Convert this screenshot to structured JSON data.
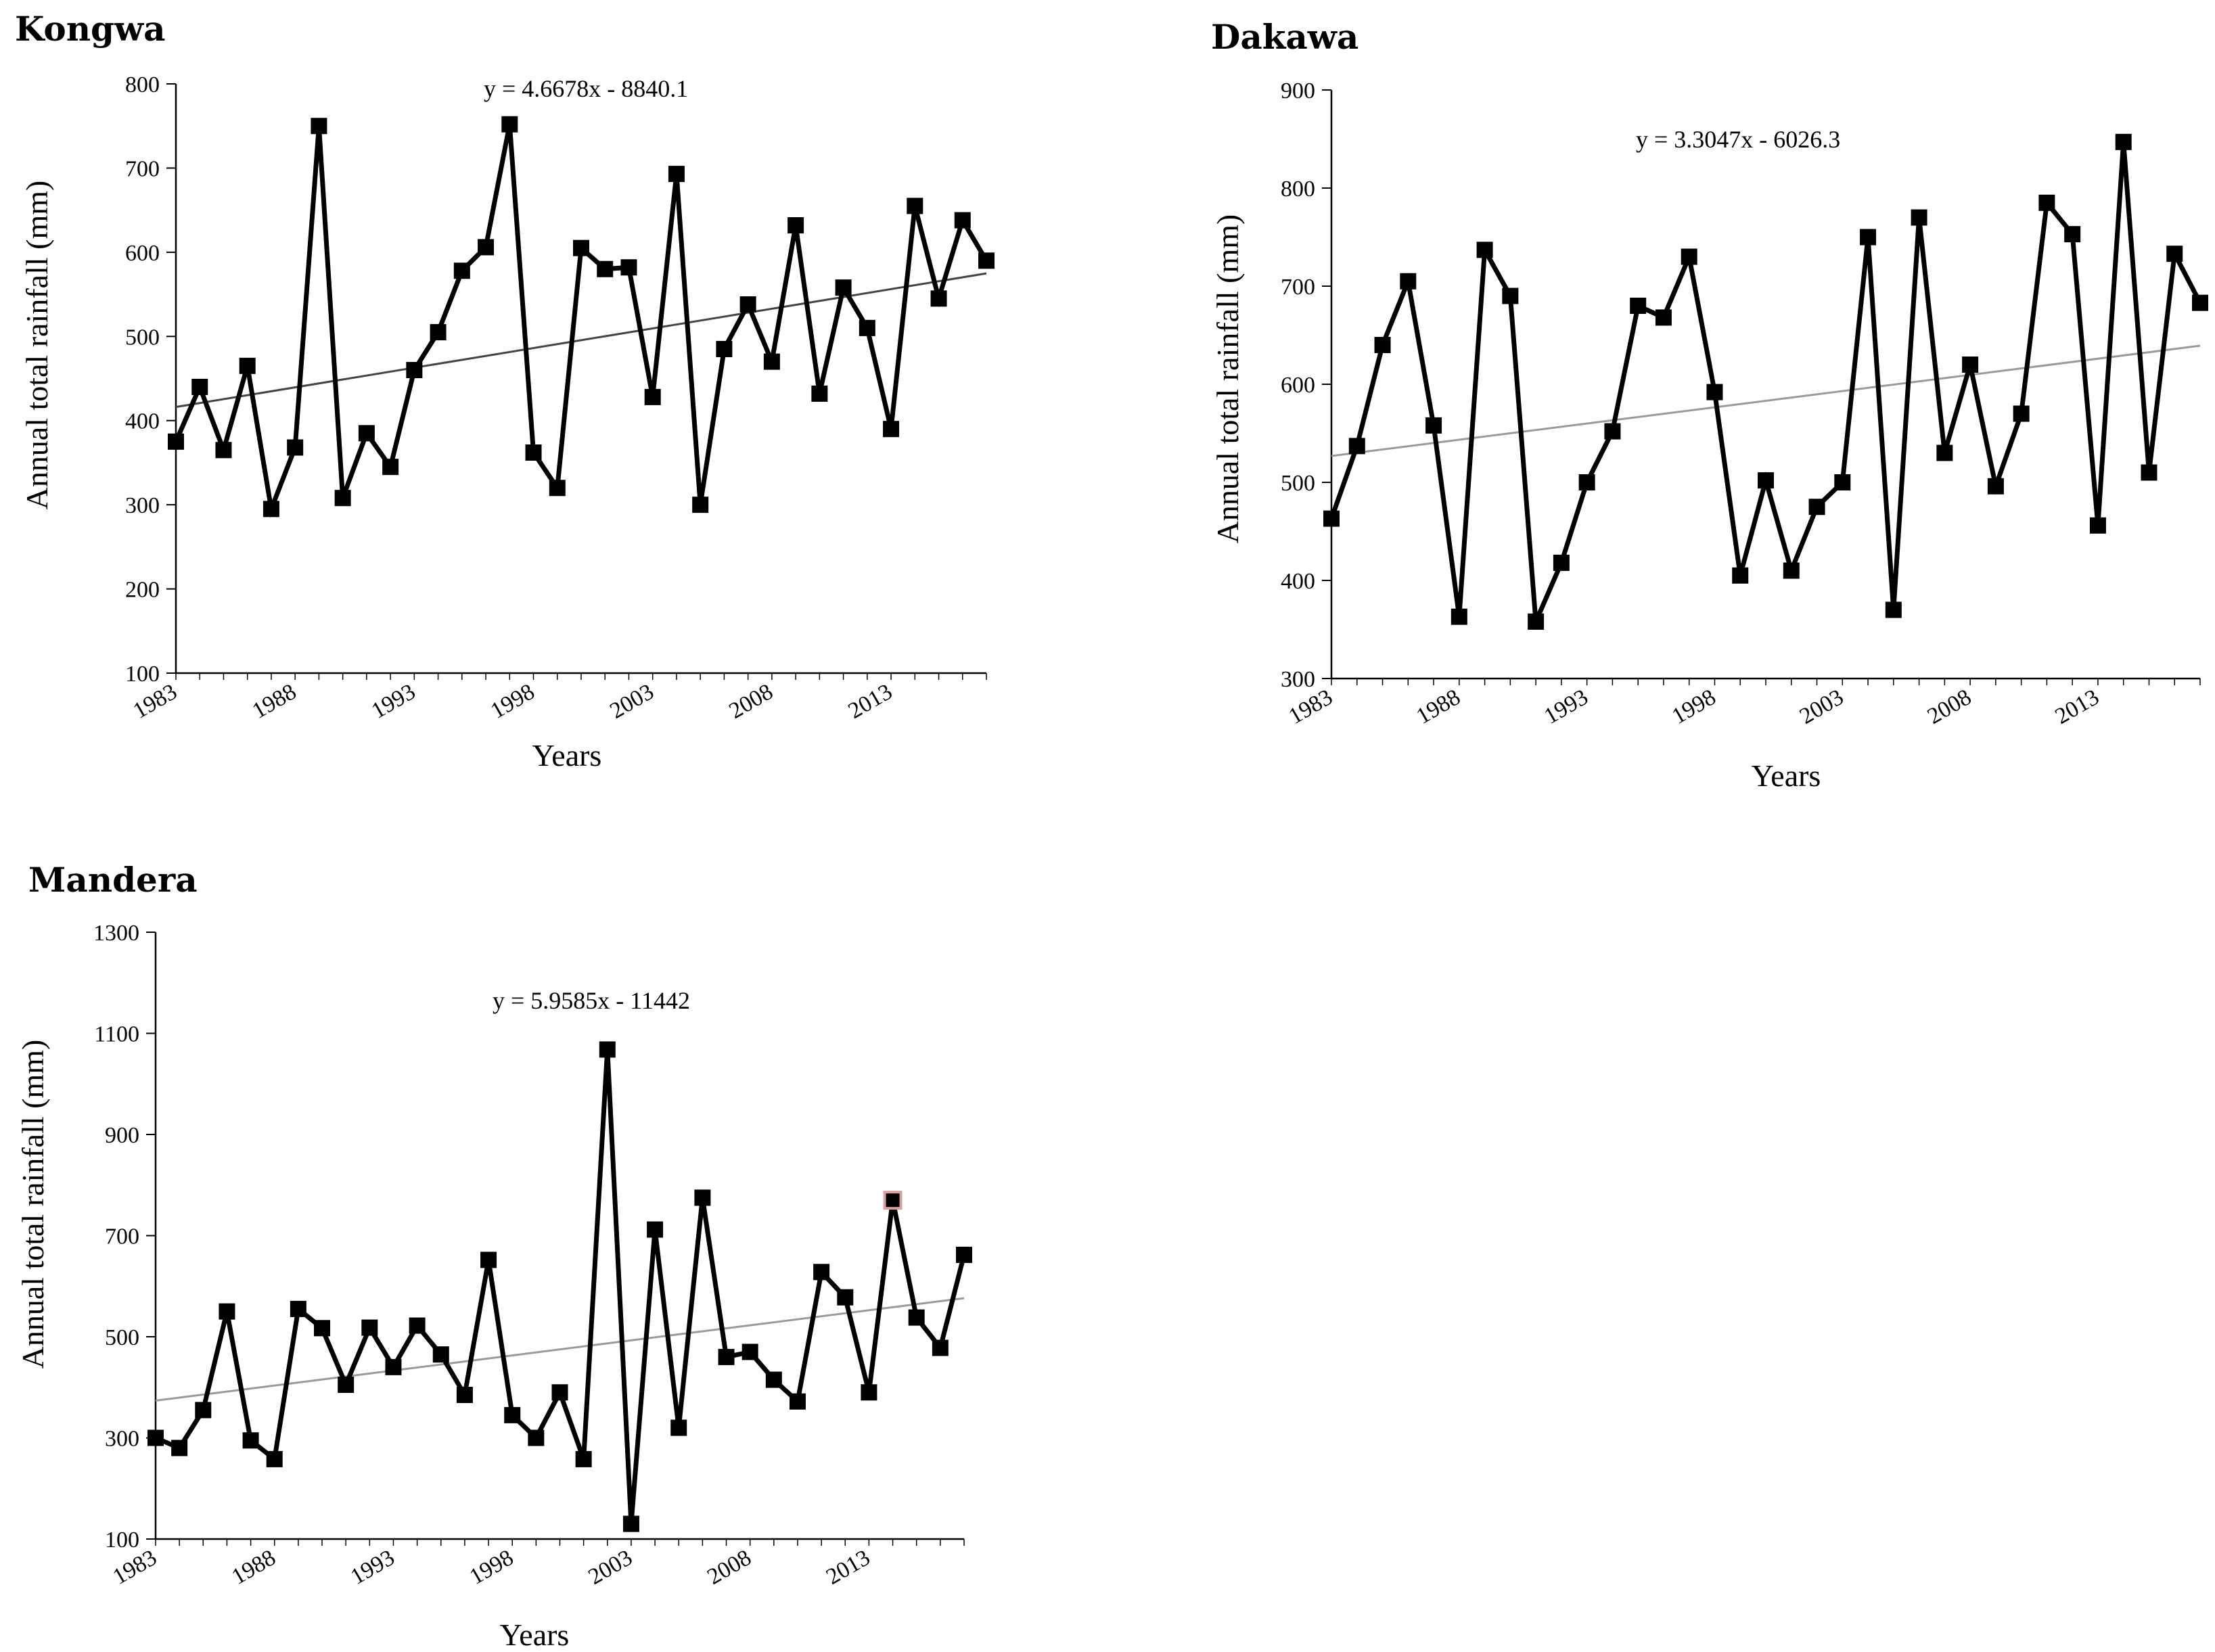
{
  "chart_data": [
    {
      "type": "line",
      "title": "Kongwa",
      "xlabel": "Years",
      "ylabel": "Annual total rainfall (mm)",
      "equation": "y = 4.6678x - 8840.1",
      "slope": 4.6678,
      "intercept": -8840.1,
      "trend_color": "#444444",
      "marker_color": "#000000",
      "xlim": [
        1983,
        2017
      ],
      "ylim": [
        100,
        800
      ],
      "ytick_step": 100,
      "xticks": [
        "1983",
        "1988",
        "1993",
        "1998",
        "2003",
        "2008",
        "2013"
      ],
      "yticks": [
        "100",
        "200",
        "300",
        "400",
        "500",
        "600",
        "700",
        "800"
      ],
      "x": [
        1983,
        1984,
        1985,
        1986,
        1987,
        1988,
        1989,
        1990,
        1991,
        1992,
        1993,
        1994,
        1995,
        1996,
        1997,
        1998,
        1999,
        2000,
        2001,
        2002,
        2003,
        2004,
        2005,
        2006,
        2007,
        2008,
        2009,
        2010,
        2011,
        2012,
        2013,
        2014,
        2015,
        2016,
        2017
      ],
      "values": [
        375,
        440,
        365,
        465,
        295,
        368,
        750,
        308,
        385,
        345,
        460,
        505,
        578,
        606,
        752,
        362,
        320,
        605,
        580,
        582,
        428,
        693,
        300,
        485,
        538,
        470,
        632,
        432,
        558,
        510,
        390,
        655,
        545,
        638,
        590
      ]
    },
    {
      "type": "line",
      "title": "Dakawa",
      "xlabel": "Years",
      "ylabel": "Annual total rainfall (mm)",
      "equation": "y = 3.3047x - 6026.3",
      "slope": 3.3047,
      "intercept": -6026.3,
      "trend_color": "#9a9a9a",
      "marker_color": "#000000",
      "xlim": [
        1983,
        2017
      ],
      "ylim": [
        300,
        900
      ],
      "ytick_step": 100,
      "xticks": [
        "1983",
        "1988",
        "1993",
        "1998",
        "2003",
        "2008",
        "2013"
      ],
      "yticks": [
        "300",
        "400",
        "500",
        "600",
        "700",
        "800",
        "900"
      ],
      "x": [
        1983,
        1984,
        1985,
        1986,
        1987,
        1988,
        1989,
        1990,
        1991,
        1992,
        1993,
        1994,
        1995,
        1996,
        1997,
        1998,
        1999,
        2000,
        2001,
        2002,
        2003,
        2004,
        2005,
        2006,
        2007,
        2008,
        2009,
        2010,
        2011,
        2012,
        2013,
        2014,
        2015,
        2016,
        2017
      ],
      "values": [
        463,
        537,
        640,
        705,
        558,
        363,
        737,
        690,
        358,
        418,
        500,
        552,
        680,
        668,
        730,
        592,
        405,
        502,
        410,
        475,
        500,
        750,
        370,
        770,
        530,
        620,
        496,
        570,
        785,
        753,
        456,
        847,
        510,
        733,
        683
      ]
    },
    {
      "type": "line",
      "title": "Mandera",
      "xlabel": "Years",
      "ylabel": "Annual total rainfall (mm)",
      "equation": "y = 5.9585x - 11442",
      "slope": 5.9585,
      "intercept": -11442,
      "trend_color": "#9a9a9a",
      "marker_color": "#000000",
      "highlight_color": "#d9a0a0",
      "highlight_index": 31,
      "xlim": [
        1983,
        2017
      ],
      "ylim": [
        100,
        1300
      ],
      "ytick_step": 200,
      "xticks": [
        "1983",
        "1988",
        "1993",
        "1998",
        "2003",
        "2008",
        "2013"
      ],
      "yticks": [
        "100",
        "300",
        "500",
        "700",
        "900",
        "1100",
        "1300"
      ],
      "x": [
        1983,
        1984,
        1985,
        1986,
        1987,
        1988,
        1989,
        1990,
        1991,
        1992,
        1993,
        1994,
        1995,
        1996,
        1997,
        1998,
        1999,
        2000,
        2001,
        2002,
        2003,
        2004,
        2005,
        2006,
        2007,
        2008,
        2009,
        2010,
        2011,
        2012,
        2013,
        2014,
        2015,
        2016,
        2017
      ],
      "values": [
        300,
        280,
        355,
        550,
        295,
        258,
        555,
        517,
        405,
        518,
        440,
        522,
        465,
        385,
        652,
        345,
        300,
        390,
        258,
        1068,
        130,
        712,
        320,
        775,
        460,
        470,
        415,
        372,
        628,
        578,
        390,
        770,
        538,
        478,
        662
      ]
    }
  ]
}
